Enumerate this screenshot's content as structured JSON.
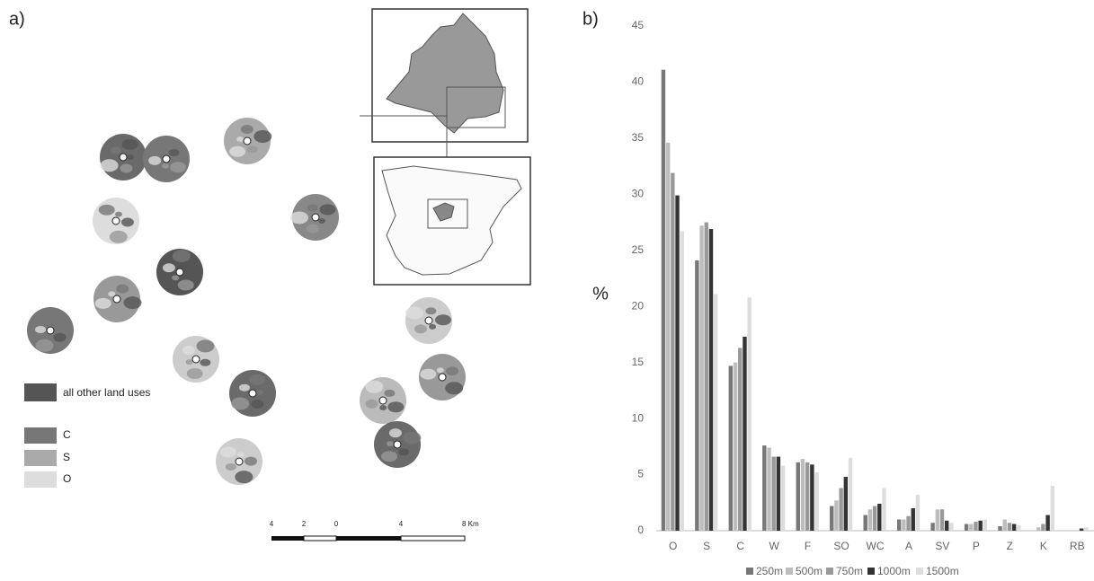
{
  "panel_labels": [
    "a)",
    "b)"
  ],
  "map": {
    "legend": [
      "all other land uses",
      "C",
      "S",
      "O"
    ],
    "scale_labels": [
      "4",
      "2",
      "0",
      "4",
      "8 Km"
    ]
  },
  "chart_data": {
    "type": "bar",
    "y_label": "%",
    "categories": [
      "O",
      "S",
      "C",
      "W",
      "F",
      "SO",
      "WC",
      "A",
      "SV",
      "P",
      "Z",
      "K",
      "RB"
    ],
    "series": [
      {
        "name": "250m",
        "color": "#777777",
        "values": [
          41.1,
          24.1,
          14.7,
          7.6,
          6.1,
          2.2,
          1.4,
          1.0,
          0.7,
          0.6,
          0.4,
          0,
          0
        ]
      },
      {
        "name": "500m",
        "color": "#bdbdbd",
        "values": [
          34.6,
          27.2,
          15.0,
          7.4,
          6.4,
          2.7,
          1.9,
          1.0,
          1.9,
          0.6,
          1.0,
          0.3,
          0
        ]
      },
      {
        "name": "750m",
        "color": "#999999",
        "values": [
          31.9,
          27.5,
          16.3,
          6.6,
          6.1,
          3.8,
          2.2,
          1.3,
          1.9,
          0.8,
          0.7,
          0.6,
          0
        ]
      },
      {
        "name": "1000m",
        "color": "#333333",
        "values": [
          29.9,
          26.9,
          17.3,
          6.6,
          5.9,
          4.8,
          2.4,
          2.0,
          0.9,
          0.9,
          0.6,
          1.4,
          0.2
        ]
      },
      {
        "name": "1500m",
        "color": "#dddddd",
        "values": [
          26.7,
          21.1,
          20.8,
          5.8,
          5.2,
          6.5,
          3.8,
          3.2,
          0.7,
          1.0,
          0.5,
          4.0,
          0.3
        ]
      }
    ],
    "ylim": [
      0,
      45
    ],
    "yticks": [
      0,
      5,
      10,
      15,
      20,
      25,
      30,
      35,
      40,
      45
    ],
    "grid": false
  }
}
